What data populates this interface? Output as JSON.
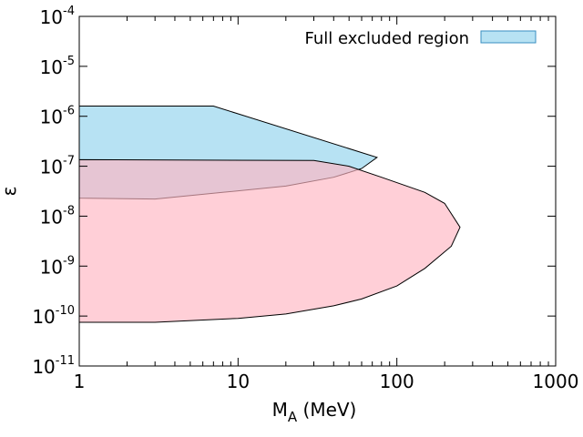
{
  "chart_data": {
    "type": "area",
    "title": "",
    "xlabel_main": "M",
    "xlabel_sub": "A",
    "xlabel_unit": " (MeV)",
    "ylabel": "ε",
    "x_scale": "log",
    "y_scale": "log",
    "xlim": [
      1,
      1000
    ],
    "ylim": [
      1e-11,
      0.0001
    ],
    "grid": false,
    "legend_position": "top-right",
    "x_ticks": [
      {
        "value": 1,
        "label": "1"
      },
      {
        "value": 10,
        "label": "10"
      },
      {
        "value": 100,
        "label": "100"
      },
      {
        "value": 1000,
        "label": "1000"
      }
    ],
    "y_ticks": [
      {
        "value": 0.0001,
        "base": "10",
        "exp": "-4"
      },
      {
        "value": 1e-05,
        "base": "10",
        "exp": "-5"
      },
      {
        "value": 1e-06,
        "base": "10",
        "exp": "-6"
      },
      {
        "value": 1e-07,
        "base": "10",
        "exp": "-7"
      },
      {
        "value": 1e-08,
        "base": "10",
        "exp": "-8"
      },
      {
        "value": 1e-09,
        "base": "10",
        "exp": "-9"
      },
      {
        "value": 1e-10,
        "base": "10",
        "exp": "-10"
      },
      {
        "value": 1e-11,
        "base": "10",
        "exp": "-11"
      }
    ],
    "series": [
      {
        "name": "Full excluded region",
        "color": "#87ceeb",
        "opacity": 0.6,
        "outline": [
          [
            1,
            1.6e-06
          ],
          [
            7,
            1.6e-06
          ],
          [
            75,
            1.5e-07
          ],
          [
            60,
            9e-08
          ],
          [
            40,
            6e-08
          ],
          [
            20,
            4e-08
          ],
          [
            8,
            3e-08
          ],
          [
            3,
            2.2e-08
          ],
          [
            1,
            2.3e-08
          ]
        ]
      },
      {
        "name": "",
        "color": "#ffb6c1",
        "opacity": 0.65,
        "outline": [
          [
            1,
            1.35e-07
          ],
          [
            30,
            1.3e-07
          ],
          [
            50,
            1e-07
          ],
          [
            80,
            6e-08
          ],
          [
            150,
            3e-08
          ],
          [
            200,
            1.8e-08
          ],
          [
            250,
            6e-09
          ],
          [
            220,
            2.5e-09
          ],
          [
            150,
            9e-10
          ],
          [
            100,
            4e-10
          ],
          [
            60,
            2.2e-10
          ],
          [
            40,
            1.6e-10
          ],
          [
            20,
            1.1e-10
          ],
          [
            10,
            9e-11
          ],
          [
            3,
            7.5e-11
          ],
          [
            1,
            7.5e-11
          ]
        ]
      }
    ]
  }
}
